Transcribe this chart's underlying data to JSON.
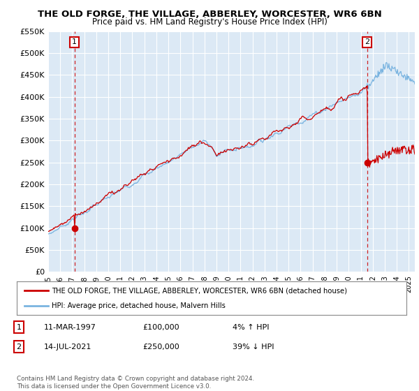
{
  "title": "THE OLD FORGE, THE VILLAGE, ABBERLEY, WORCESTER, WR6 6BN",
  "subtitle": "Price paid vs. HM Land Registry's House Price Index (HPI)",
  "ylim": [
    0,
    550000
  ],
  "yticks": [
    0,
    50000,
    100000,
    150000,
    200000,
    250000,
    300000,
    350000,
    400000,
    450000,
    500000,
    550000
  ],
  "ytick_labels": [
    "£0",
    "£50K",
    "£100K",
    "£150K",
    "£200K",
    "£250K",
    "£300K",
    "£350K",
    "£400K",
    "£450K",
    "£500K",
    "£550K"
  ],
  "background_color": "#dce9f5",
  "grid_color": "#ffffff",
  "sale1_date_num": 1997.19,
  "sale1_price": 100000,
  "sale2_date_num": 2021.54,
  "sale2_price": 250000,
  "legend_line1": "THE OLD FORGE, THE VILLAGE, ABBERLEY, WORCESTER, WR6 6BN (detached house)",
  "legend_line2": "HPI: Average price, detached house, Malvern Hills",
  "table_row1": [
    "1",
    "11-MAR-1997",
    "£100,000",
    "4% ↑ HPI"
  ],
  "table_row2": [
    "2",
    "14-JUL-2021",
    "£250,000",
    "39% ↓ HPI"
  ],
  "footer": "Contains HM Land Registry data © Crown copyright and database right 2024.\nThis data is licensed under the Open Government Licence v3.0.",
  "hpi_color": "#7ab4e0",
  "price_color": "#cc0000",
  "xmin": 1995.0,
  "xmax": 2025.5
}
